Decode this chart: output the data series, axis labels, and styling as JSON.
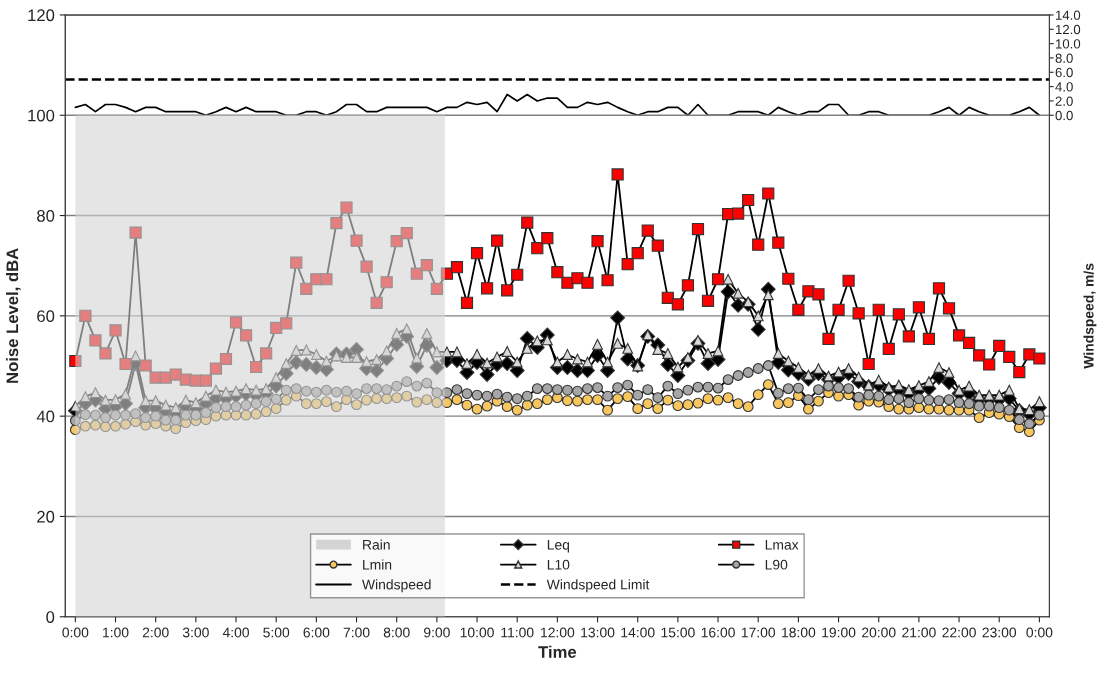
{
  "chart_data": {
    "type": "line",
    "xlabel": "Time",
    "ylabel": "Noise Level, dBA",
    "y2label": "Windspeed, m/s",
    "x": [
      0,
      0.25,
      0.5,
      0.75,
      1,
      1.25,
      1.5,
      1.75,
      2,
      2.25,
      2.5,
      2.75,
      3,
      3.25,
      3.5,
      3.75,
      4,
      4.25,
      4.5,
      4.75,
      5,
      5.25,
      5.5,
      5.75,
      6,
      6.25,
      6.5,
      6.75,
      7,
      7.25,
      7.5,
      7.75,
      8,
      8.25,
      8.5,
      8.75,
      9,
      9.25,
      9.5,
      9.75,
      10,
      10.25,
      10.5,
      10.75,
      11,
      11.25,
      11.5,
      11.75,
      12,
      12.25,
      12.5,
      12.75,
      13,
      13.25,
      13.5,
      13.75,
      14,
      14.25,
      14.5,
      14.75,
      15,
      15.25,
      15.5,
      15.75,
      16,
      16.25,
      16.5,
      16.75,
      17,
      17.25,
      17.5,
      17.75,
      18,
      18.25,
      18.5,
      18.75,
      19,
      19.25,
      19.5,
      19.75,
      20,
      20.25,
      20.5,
      20.75,
      21,
      21.25,
      21.5,
      21.75,
      22,
      22.25,
      22.5,
      22.75,
      23,
      23.25,
      23.5,
      23.75,
      24
    ],
    "series": [
      {
        "name": "Leq",
        "color": "#000000",
        "marker": "diamond",
        "values": [
          41.1,
          42.5,
          43.2,
          41.5,
          41.9,
          42.5,
          50.5,
          41.7,
          41.5,
          40.9,
          40.5,
          41.9,
          41.5,
          42.5,
          43.5,
          43.5,
          44,
          44.4,
          44.1,
          44.5,
          46,
          48.5,
          50.7,
          50.3,
          49.7,
          49.3,
          52.4,
          52.4,
          53.3,
          49.5,
          49.1,
          51.5,
          54.3,
          55.9,
          49.9,
          54.1,
          49.7,
          51.1,
          51.1,
          48.7,
          50.7,
          48.3,
          50.3,
          50.5,
          49.1,
          55.5,
          53.7,
          56.2,
          49.7,
          49.7,
          49.1,
          49.1,
          52.1,
          49.1,
          59.6,
          51.4,
          50.1,
          55.9,
          54.2,
          50.3,
          48.1,
          51.1,
          54.5,
          50.5,
          51.3,
          64.8,
          62.1,
          62.3,
          57.3,
          65.3,
          50.7,
          49.2,
          48.5,
          47.4,
          48.5,
          47.3,
          47.7,
          48.5,
          46.9,
          45.9,
          46.2,
          45.3,
          45.2,
          44.5,
          45.2,
          45.5,
          47.7,
          46.7,
          44.5,
          44.5,
          43.3,
          43.3,
          43.3,
          43.5,
          41.1,
          40.4,
          41.7
        ]
      },
      {
        "name": "Lmax",
        "color": "#ff0000",
        "marker": "square",
        "values": [
          51,
          60,
          55.1,
          52.5,
          57.1,
          50.4,
          76.6,
          50.1,
          47.7,
          47.7,
          48.3,
          47.3,
          47.1,
          47.1,
          49.5,
          51.4,
          58.7,
          56.1,
          49.8,
          52.5,
          57.6,
          58.5,
          70.6,
          65.4,
          67.3,
          67.3,
          78.5,
          81.6,
          75,
          69.8,
          62.6,
          66.7,
          74.9,
          76.5,
          68.4,
          70.1,
          65.4,
          68.4,
          69.7,
          62.6,
          72.5,
          65.5,
          75,
          65.1,
          68.2,
          78.6,
          73.5,
          75.5,
          68.7,
          66.6,
          67.5,
          66.6,
          74.9,
          67.1,
          88.2,
          70.3,
          72.5,
          77,
          74,
          63.6,
          62.3,
          66.1,
          77.3,
          63,
          67.3,
          80.3,
          80.4,
          83.1,
          74.2,
          84.4,
          74.6,
          67.4,
          61.2,
          64.9,
          64.3,
          55.4,
          61.2,
          67,
          60.5,
          50.4,
          61.2,
          53.4,
          60.3,
          55.9,
          61.7,
          55.4,
          65.5,
          61.5,
          56.1,
          54.6,
          52.1,
          50.3,
          54,
          51.8,
          48.8,
          52.3,
          51.5
        ]
      },
      {
        "name": "Lmin",
        "color": "#f7c65e",
        "marker": "circle",
        "values": [
          37.3,
          38,
          38.2,
          37.9,
          38,
          38.4,
          38.9,
          38.2,
          38.5,
          38,
          37.5,
          38.7,
          39.1,
          39.3,
          40,
          40.2,
          40.2,
          40.2,
          40.4,
          40.9,
          41.5,
          43.2,
          44,
          42.5,
          42.5,
          42.9,
          41.9,
          43.3,
          42.3,
          43.2,
          43.5,
          43.5,
          43.7,
          44,
          42.8,
          43.3,
          42.7,
          42.7,
          43.3,
          42.2,
          41.4,
          42,
          43,
          41.9,
          41.2,
          42.2,
          42.5,
          43.3,
          43.7,
          43.1,
          43,
          43.3,
          43.3,
          41.2,
          43.5,
          43.9,
          41.5,
          42.5,
          41.5,
          43.2,
          42.1,
          42.3,
          42.6,
          43.5,
          43.2,
          43.7,
          42.5,
          41.9,
          44.3,
          46.3,
          42.5,
          42.7,
          44.1,
          41.4,
          43,
          44.7,
          44,
          44.3,
          42.2,
          43,
          42.8,
          41.9,
          41.4,
          41.4,
          41.7,
          41.4,
          41.4,
          41.2,
          41.2,
          41.2,
          39.7,
          40.7,
          40.4,
          39.9,
          37.7,
          36.9,
          39.2
        ]
      },
      {
        "name": "L10",
        "color": "#d9d9d9",
        "marker": "triangle",
        "values": [
          42,
          43.9,
          44.7,
          43.2,
          43.3,
          44.4,
          52,
          43.1,
          43.1,
          42.2,
          41.7,
          43.2,
          42.7,
          44,
          45.2,
          44.8,
          45,
          45.5,
          45.2,
          45.5,
          47.7,
          50.5,
          53.1,
          53.2,
          52.3,
          51,
          52,
          51.7,
          51.7,
          50.9,
          51.3,
          53,
          56.5,
          57.4,
          51.6,
          56.5,
          52.8,
          52.8,
          52.8,
          50.5,
          52.3,
          50.6,
          51.8,
          52.9,
          50.8,
          53.5,
          55,
          55.2,
          50.8,
          52.3,
          51.4,
          50.8,
          54.3,
          50.8,
          54.5,
          53.5,
          50,
          56.2,
          53.3,
          52.5,
          49.8,
          51.7,
          55.1,
          52.5,
          53,
          67.3,
          64.5,
          62.8,
          60,
          64.2,
          52.5,
          51,
          49.7,
          48.2,
          49.5,
          48,
          48.8,
          49.5,
          47.8,
          46.2,
          47.2,
          45.8,
          46.2,
          45.3,
          46.1,
          46.9,
          49.7,
          48.7,
          45.2,
          46,
          44.2,
          44.2,
          44.2,
          45.2,
          41.5,
          41.3,
          42.9
        ]
      },
      {
        "name": "L90",
        "color": "#a6a6a6",
        "marker": "circle",
        "values": [
          39.1,
          40.3,
          40.2,
          39.7,
          40.2,
          40.2,
          40.5,
          39.7,
          40,
          39.2,
          39.2,
          40.2,
          40.2,
          40.7,
          41.7,
          41.9,
          41.9,
          42.2,
          42.5,
          42.9,
          43.4,
          45.2,
          45.5,
          45,
          44.8,
          45.2,
          44.8,
          45,
          44.5,
          45.5,
          45.5,
          45.3,
          46,
          46.9,
          46,
          46.6,
          44.7,
          44.7,
          45.3,
          44.5,
          44.2,
          44,
          44.4,
          43.8,
          43.5,
          44,
          45.5,
          45.5,
          45.3,
          45.2,
          45,
          45.5,
          45.7,
          44,
          45.7,
          46.2,
          44.2,
          45.3,
          43.7,
          46,
          44.5,
          45.2,
          45.8,
          45.8,
          45.6,
          47.3,
          48.1,
          48.7,
          49.5,
          50.1,
          44.6,
          45.5,
          45.6,
          43.3,
          45.3,
          46,
          45.7,
          45.5,
          43.8,
          44.2,
          44,
          43.3,
          43.5,
          42.7,
          43.5,
          43.2,
          43.1,
          43.3,
          42.7,
          42.5,
          42,
          42,
          41.7,
          41.2,
          39.3,
          38.5,
          40.2
        ]
      },
      {
        "name": "Windspeed",
        "color": "#000000",
        "marker": "none",
        "axis": "y2",
        "values": [
          1.1,
          1.5,
          0.5,
          1.5,
          1.5,
          1.1,
          0.5,
          1.1,
          1.1,
          0.5,
          0.5,
          0.5,
          0.5,
          0,
          0.5,
          1.1,
          0.5,
          1.1,
          0.5,
          0.5,
          0.5,
          0,
          0,
          0.5,
          0.5,
          0,
          0.5,
          1.5,
          1.5,
          0.5,
          0.5,
          1.1,
          1.1,
          1.1,
          1.1,
          1.1,
          0.5,
          1.1,
          1.1,
          1.8,
          1.5,
          1.8,
          0.5,
          2.9,
          2,
          2.9,
          2,
          2.4,
          2.4,
          1.1,
          1.1,
          1.8,
          1.5,
          1.8,
          1.1,
          0.5,
          0,
          0.5,
          0.5,
          1.1,
          1.1,
          0,
          1.5,
          0,
          0,
          0,
          0.5,
          0.5,
          0.5,
          0,
          1.1,
          0.5,
          0,
          0.5,
          0.5,
          1.5,
          1.5,
          0,
          0,
          0.5,
          0.5,
          0,
          0,
          0,
          0,
          0,
          0.5,
          1.1,
          0,
          1.1,
          0.5,
          0,
          0,
          0,
          0.5,
          1.1,
          0
        ]
      }
    ],
    "bands": [
      {
        "axis": "x",
        "from": 0,
        "to": 9.2,
        "label": "Rain",
        "color": "#d4d4d4"
      }
    ],
    "ref_lines": [
      {
        "axis": "y2",
        "value": 5,
        "label": "Windspeed Limit",
        "line_style": "dashed",
        "color": "#000000"
      }
    ],
    "xlim": [
      -0.25,
      24.25
    ],
    "xticks": [
      {
        "value": 0,
        "label": "0:00"
      },
      {
        "value": 1,
        "label": "1:00"
      },
      {
        "value": 2,
        "label": "2:00"
      },
      {
        "value": 3,
        "label": "3:00"
      },
      {
        "value": 4,
        "label": "4:00"
      },
      {
        "value": 5,
        "label": "5:00"
      },
      {
        "value": 6,
        "label": "6:00"
      },
      {
        "value": 7,
        "label": "7:00"
      },
      {
        "value": 8,
        "label": "8:00"
      },
      {
        "value": 9,
        "label": "9:00"
      },
      {
        "value": 10,
        "label": "10:00"
      },
      {
        "value": 11,
        "label": "11:00"
      },
      {
        "value": 12,
        "label": "12:00"
      },
      {
        "value": 13,
        "label": "13:00"
      },
      {
        "value": 14,
        "label": "14:00"
      },
      {
        "value": 15,
        "label": "15:00"
      },
      {
        "value": 16,
        "label": "16:00"
      },
      {
        "value": 17,
        "label": "17:00"
      },
      {
        "value": 18,
        "label": "18:00"
      },
      {
        "value": 19,
        "label": "19:00"
      },
      {
        "value": 20,
        "label": "20:00"
      },
      {
        "value": 21,
        "label": "21:00"
      },
      {
        "value": 22,
        "label": "22:00"
      },
      {
        "value": 23,
        "label": "23:00"
      },
      {
        "value": 24,
        "label": "0:00"
      }
    ],
    "ylim": [
      0,
      120
    ],
    "yticks": [
      0,
      20,
      40,
      60,
      80,
      100,
      120
    ],
    "y2lim": [
      -70,
      14
    ],
    "y2ticks": [
      {
        "value": 0,
        "label": "0.0"
      },
      {
        "value": 2,
        "label": "2.0"
      },
      {
        "value": 4,
        "label": "4.0"
      },
      {
        "value": 6,
        "label": "6.0"
      },
      {
        "value": 8,
        "label": "8.0"
      },
      {
        "value": 10,
        "label": "10.0"
      },
      {
        "value": 12,
        "label": "12.0"
      },
      {
        "value": 14,
        "label": "14.0"
      }
    ],
    "grid": "y",
    "legend": "bottom",
    "line_style": "solid"
  }
}
